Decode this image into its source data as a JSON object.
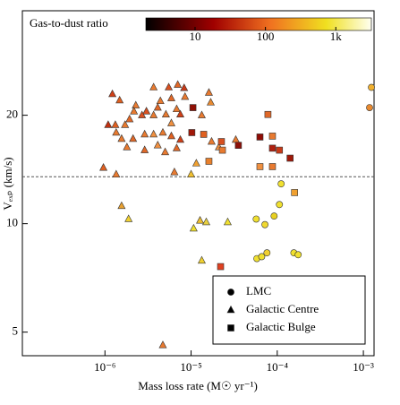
{
  "chart_data": {
    "type": "scatter",
    "xlabel": "Mass loss rate (M☉ yr⁻¹)",
    "ylabel": "Vₑₓₚ (km/s)",
    "xscale": "log",
    "yscale": "log",
    "xlim": [
      1.1e-07,
      0.00133
    ],
    "ylim": [
      4.3,
      39
    ],
    "xticks": [
      {
        "value": 1e-06,
        "label": "10⁻⁶"
      },
      {
        "value": 1e-05,
        "label": "10⁻⁵"
      },
      {
        "value": 0.0001,
        "label": "10⁻⁴"
      },
      {
        "value": 0.001,
        "label": "10⁻³"
      }
    ],
    "yticks": [
      5,
      10,
      20
    ],
    "hline": 13.5,
    "legend": "lower right",
    "colorbar": {
      "label": "Gas-to-dust ratio",
      "lim": [
        2,
        3200
      ],
      "ticks": [
        10,
        100,
        {
          "value": 1000,
          "label": "1k"
        }
      ]
    },
    "series": [
      {
        "name": "LMC",
        "marker": "circle",
        "x": [
          0.00124,
          0.00118,
          0.000111,
          0.000106,
          9.2e-05,
          5.7e-05,
          7.2e-05,
          5.8e-05,
          6.6e-05,
          7.6e-05,
          0.000156,
          0.000175
        ],
        "y": [
          23.9,
          21.0,
          12.9,
          11.3,
          10.5,
          10.3,
          9.94,
          8.0,
          8.1,
          8.3,
          8.3,
          8.2
        ],
        "colors": [
          "#f0b030",
          "#e88a30",
          "#f0e030",
          "#f0e030",
          "#e8d020",
          "#f0e030",
          "#f0d830",
          "#f0e030",
          "#f0e030",
          "#f0d030",
          "#f0e030",
          "#f0e030"
        ]
      },
      {
        "name": "Galactic Centre",
        "marker": "triangle",
        "x": [
          1.22e-06,
          1.48e-06,
          3.67e-06,
          5.5e-06,
          7e-06,
          8.3e-06,
          4.4e-06,
          5.9e-06,
          8.5e-06,
          1.61e-05,
          1.69e-05,
          2.28e-06,
          3.03e-06,
          4.1e-06,
          6.8e-06,
          7.5e-06,
          1.09e-06,
          1.32e-06,
          1.35e-06,
          1.71e-06,
          1.93e-06,
          2.17e-06,
          2.69e-06,
          3.67e-06,
          5.1e-06,
          5.9e-06,
          1.33e-05,
          1.56e-06,
          2.12e-06,
          2.89e-06,
          3.67e-06,
          4.7e-06,
          5.9e-06,
          7.5e-06,
          1.8e-06,
          2.89e-06,
          4.1e-06,
          5e-06,
          6.8e-06,
          1.73e-05,
          2.1e-05,
          3.3e-05,
          9.6e-07,
          1.35e-06,
          6.4e-06,
          1.15e-05,
          1e-05,
          1.56e-06,
          1.88e-06,
          1.07e-05,
          1.27e-05,
          1.5e-05,
          2.66e-05,
          1.33e-05,
          4.7e-06
        ],
        "y": [
          22.9,
          22.0,
          23.9,
          23.9,
          24.3,
          23.8,
          21.9,
          22.3,
          22.5,
          23.1,
          21.7,
          21.3,
          20.5,
          21.0,
          20.8,
          20.1,
          18.8,
          18.8,
          17.9,
          18.8,
          19.5,
          20.5,
          20.0,
          20.0,
          20.1,
          19.0,
          20.0,
          17.2,
          17.2,
          17.7,
          17.7,
          17.9,
          17.5,
          17.1,
          16.3,
          16.0,
          16.5,
          15.8,
          16.2,
          16.9,
          16.3,
          17.1,
          14.3,
          13.7,
          13.9,
          14.7,
          13.7,
          11.2,
          10.3,
          9.7,
          10.2,
          10.1,
          10.1,
          7.9,
          4.6
        ],
        "colors": [
          "#d04018",
          "#e06020",
          "#e87a30",
          "#d85020",
          "#e06828",
          "#c83a18",
          "#e87a30",
          "#e06828",
          "#e87a30",
          "#e87a30",
          "#e88a30",
          "#e87a30",
          "#d85020",
          "#e06828",
          "#e87a30",
          "#d04018",
          "#c03010",
          "#e06020",
          "#e87a30",
          "#e87a30",
          "#e06828",
          "#e87a30",
          "#d85020",
          "#e87a30",
          "#e87a30",
          "#f09040",
          "#e87a30",
          "#e87a30",
          "#e06828",
          "#e87a30",
          "#f09040",
          "#e87a30",
          "#e06020",
          "#d04018",
          "#e87a30",
          "#e06828",
          "#f09040",
          "#e87a30",
          "#e06828",
          "#e87a30",
          "#f09040",
          "#e87a30",
          "#e06020",
          "#e87a30",
          "#e87a30",
          "#f0a030",
          "#f0c030",
          "#e8a030",
          "#f0d030",
          "#f0e030",
          "#f0c030",
          "#e8d040",
          "#f0e030",
          "#f0d030",
          "#e87a30"
        ]
      },
      {
        "name": "Galactic Bulge",
        "marker": "square",
        "x": [
          1.02e-05,
          1.05e-05,
          1.4e-05,
          1.61e-05,
          2.31e-05,
          2.25e-05,
          3.54e-05,
          7.8e-05,
          6.3e-05,
          8.8e-05,
          8.8e-05,
          0.000106,
          6.3e-05,
          8.8e-05,
          0.000141,
          0.000159,
          2.2e-05
        ],
        "y": [
          17.9,
          21.0,
          17.7,
          14.9,
          16.0,
          16.9,
          16.5,
          20.1,
          17.4,
          17.5,
          16.2,
          16.0,
          14.4,
          14.4,
          15.2,
          12.2,
          7.6
        ],
        "colors": [
          "#a01808",
          "#901005",
          "#e06020",
          "#e8802c",
          "#e87a30",
          "#d85020",
          "#8c1008",
          "#e06828",
          "#900c05",
          "#e87a30",
          "#b02010",
          "#c83a18",
          "#f09040",
          "#e87a30",
          "#a01808",
          "#f0a030",
          "#e04020"
        ]
      }
    ]
  }
}
